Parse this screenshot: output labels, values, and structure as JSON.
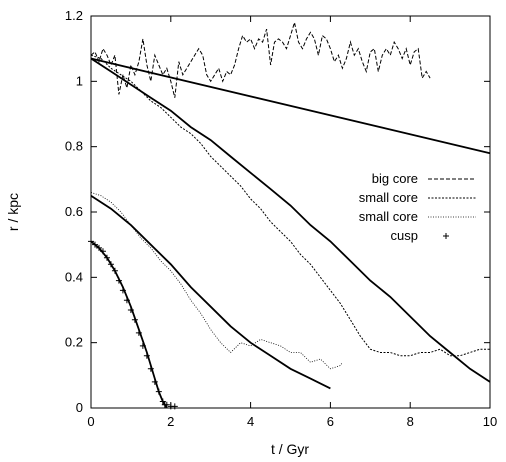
{
  "chart_data": {
    "type": "line",
    "title": "",
    "xlabel": "t / Gyr",
    "ylabel": "r / kpc",
    "xlim": [
      0,
      10
    ],
    "ylim": [
      0,
      1.2
    ],
    "xticks": [
      "0",
      "2",
      "4",
      "6",
      "8",
      "10"
    ],
    "yticks": [
      "0",
      "0.2",
      "0.4",
      "0.6",
      "0.8",
      "1",
      "1.2"
    ],
    "grid": false,
    "legend_position": "right",
    "legend": [
      "big core",
      "small core",
      "small core",
      "cusp"
    ],
    "series": [
      {
        "name": "big core",
        "style": "dashed",
        "x": [
          0.0,
          0.1,
          0.2,
          0.3,
          0.4,
          0.5,
          0.6,
          0.7,
          0.8,
          0.9,
          1.0,
          1.1,
          1.2,
          1.3,
          1.4,
          1.5,
          1.6,
          1.7,
          1.8,
          1.9,
          2.0,
          2.1,
          2.2,
          2.3,
          2.4,
          2.5,
          2.6,
          2.7,
          2.8,
          2.9,
          3.0,
          3.1,
          3.2,
          3.3,
          3.4,
          3.5,
          3.6,
          3.7,
          3.8,
          3.9,
          4.0,
          4.1,
          4.2,
          4.3,
          4.4,
          4.5,
          4.6,
          4.7,
          4.8,
          4.9,
          5.0,
          5.1,
          5.2,
          5.3,
          5.4,
          5.5,
          5.6,
          5.7,
          5.8,
          5.9,
          6.0,
          6.1,
          6.2,
          6.3,
          6.4,
          6.5,
          6.6,
          6.7,
          6.8,
          6.9,
          7.0,
          7.1,
          7.2,
          7.3,
          7.4,
          7.5,
          7.6,
          7.7,
          7.8,
          7.9,
          8.0,
          8.1,
          8.2,
          8.3,
          8.4,
          8.5
        ],
        "y": [
          1.08,
          1.09,
          1.06,
          1.1,
          1.08,
          1.05,
          1.08,
          0.96,
          1.02,
          0.98,
          1.05,
          1.02,
          1.06,
          1.13,
          1.05,
          1.0,
          1.08,
          1.05,
          1.02,
          1.04,
          1.0,
          0.95,
          1.06,
          1.02,
          1.04,
          1.06,
          1.08,
          1.1,
          1.08,
          1.02,
          1.0,
          1.02,
          1.04,
          1.0,
          1.03,
          1.02,
          1.05,
          1.1,
          1.14,
          1.12,
          1.13,
          1.1,
          1.13,
          1.12,
          1.16,
          1.05,
          1.12,
          1.13,
          1.12,
          1.1,
          1.14,
          1.18,
          1.12,
          1.1,
          1.13,
          1.15,
          1.13,
          1.08,
          1.14,
          1.13,
          1.1,
          1.06,
          1.08,
          1.04,
          1.07,
          1.12,
          1.08,
          1.1,
          1.06,
          1.03,
          1.09,
          1.1,
          1.03,
          1.08,
          1.1,
          1.08,
          1.12,
          1.1,
          1.07,
          1.1,
          1.05,
          1.09,
          1.1,
          1.01,
          1.03,
          1.01
        ]
      },
      {
        "name": "small core",
        "style": "dotted",
        "x": [
          0.0,
          0.25,
          0.5,
          0.75,
          1.0,
          1.25,
          1.5,
          1.75,
          2.0,
          2.25,
          2.5,
          2.75,
          3.0,
          3.25,
          3.5,
          3.75,
          4.0,
          4.25,
          4.5,
          4.75,
          5.0,
          5.25,
          5.5,
          5.75,
          6.0,
          6.25,
          6.5,
          6.75,
          7.0,
          7.25,
          7.5,
          7.75,
          8.0,
          8.25,
          8.5,
          8.75,
          9.0,
          9.25,
          9.5,
          9.75,
          10.0
        ],
        "y": [
          1.08,
          1.07,
          1.04,
          1.02,
          1.0,
          0.97,
          0.94,
          0.92,
          0.89,
          0.86,
          0.84,
          0.81,
          0.77,
          0.74,
          0.71,
          0.68,
          0.64,
          0.61,
          0.57,
          0.54,
          0.51,
          0.47,
          0.44,
          0.4,
          0.36,
          0.32,
          0.27,
          0.22,
          0.18,
          0.17,
          0.17,
          0.16,
          0.16,
          0.17,
          0.17,
          0.18,
          0.16,
          0.16,
          0.17,
          0.18,
          0.18
        ]
      },
      {
        "name": "small core",
        "style": "fine-dotted",
        "x": [
          0.0,
          0.25,
          0.5,
          0.75,
          1.0,
          1.25,
          1.5,
          1.75,
          2.0,
          2.25,
          2.5,
          2.75,
          3.0,
          3.25,
          3.5,
          3.75,
          4.0,
          4.25,
          4.5,
          4.75,
          5.0,
          5.25,
          5.5,
          5.75,
          6.0,
          6.25,
          6.3
        ],
        "y": [
          0.66,
          0.65,
          0.63,
          0.6,
          0.56,
          0.52,
          0.49,
          0.45,
          0.42,
          0.38,
          0.33,
          0.29,
          0.24,
          0.2,
          0.17,
          0.2,
          0.19,
          0.21,
          0.2,
          0.19,
          0.17,
          0.17,
          0.14,
          0.15,
          0.12,
          0.13,
          0.14
        ]
      },
      {
        "name": "cusp",
        "style": "plus-markers",
        "x": [
          0.0,
          0.1,
          0.2,
          0.3,
          0.4,
          0.5,
          0.6,
          0.7,
          0.8,
          0.9,
          1.0,
          1.1,
          1.2,
          1.3,
          1.4,
          1.5,
          1.6,
          1.7,
          1.8,
          1.85,
          1.9,
          2.0,
          2.1
        ],
        "y": [
          0.51,
          0.5,
          0.49,
          0.48,
          0.46,
          0.44,
          0.42,
          0.39,
          0.36,
          0.33,
          0.3,
          0.27,
          0.23,
          0.19,
          0.16,
          0.12,
          0.08,
          0.05,
          0.02,
          0.01,
          0.01,
          0.005,
          0.005
        ]
      },
      {
        "name": "",
        "style": "solid",
        "x": [
          0.0,
          10.0
        ],
        "y": [
          1.07,
          0.78
        ]
      },
      {
        "name": "",
        "style": "solid",
        "x": [
          0.0,
          0.5,
          1.0,
          1.5,
          2.0,
          2.5,
          3.0,
          3.5,
          4.0,
          4.5,
          5.0,
          5.5,
          6.0,
          6.5,
          7.0,
          7.5,
          8.0,
          8.5,
          9.0,
          9.5,
          10.0
        ],
        "y": [
          1.07,
          1.03,
          0.99,
          0.95,
          0.91,
          0.86,
          0.82,
          0.77,
          0.72,
          0.67,
          0.62,
          0.56,
          0.51,
          0.45,
          0.39,
          0.34,
          0.28,
          0.22,
          0.17,
          0.12,
          0.08
        ]
      },
      {
        "name": "",
        "style": "solid",
        "x": [
          0.0,
          0.5,
          1.0,
          1.5,
          2.0,
          2.5,
          3.0,
          3.5,
          4.0,
          4.5,
          5.0,
          5.5,
          6.0
        ],
        "y": [
          0.65,
          0.61,
          0.56,
          0.5,
          0.44,
          0.37,
          0.31,
          0.25,
          0.2,
          0.16,
          0.12,
          0.09,
          0.06
        ]
      },
      {
        "name": "",
        "style": "solid",
        "x": [
          0.0,
          0.2,
          0.4,
          0.6,
          0.8,
          1.0,
          1.2,
          1.4,
          1.6,
          1.7,
          1.8,
          1.85,
          1.9
        ],
        "y": [
          0.51,
          0.49,
          0.46,
          0.42,
          0.37,
          0.31,
          0.24,
          0.17,
          0.09,
          0.05,
          0.02,
          0.01,
          0.0
        ]
      }
    ]
  }
}
